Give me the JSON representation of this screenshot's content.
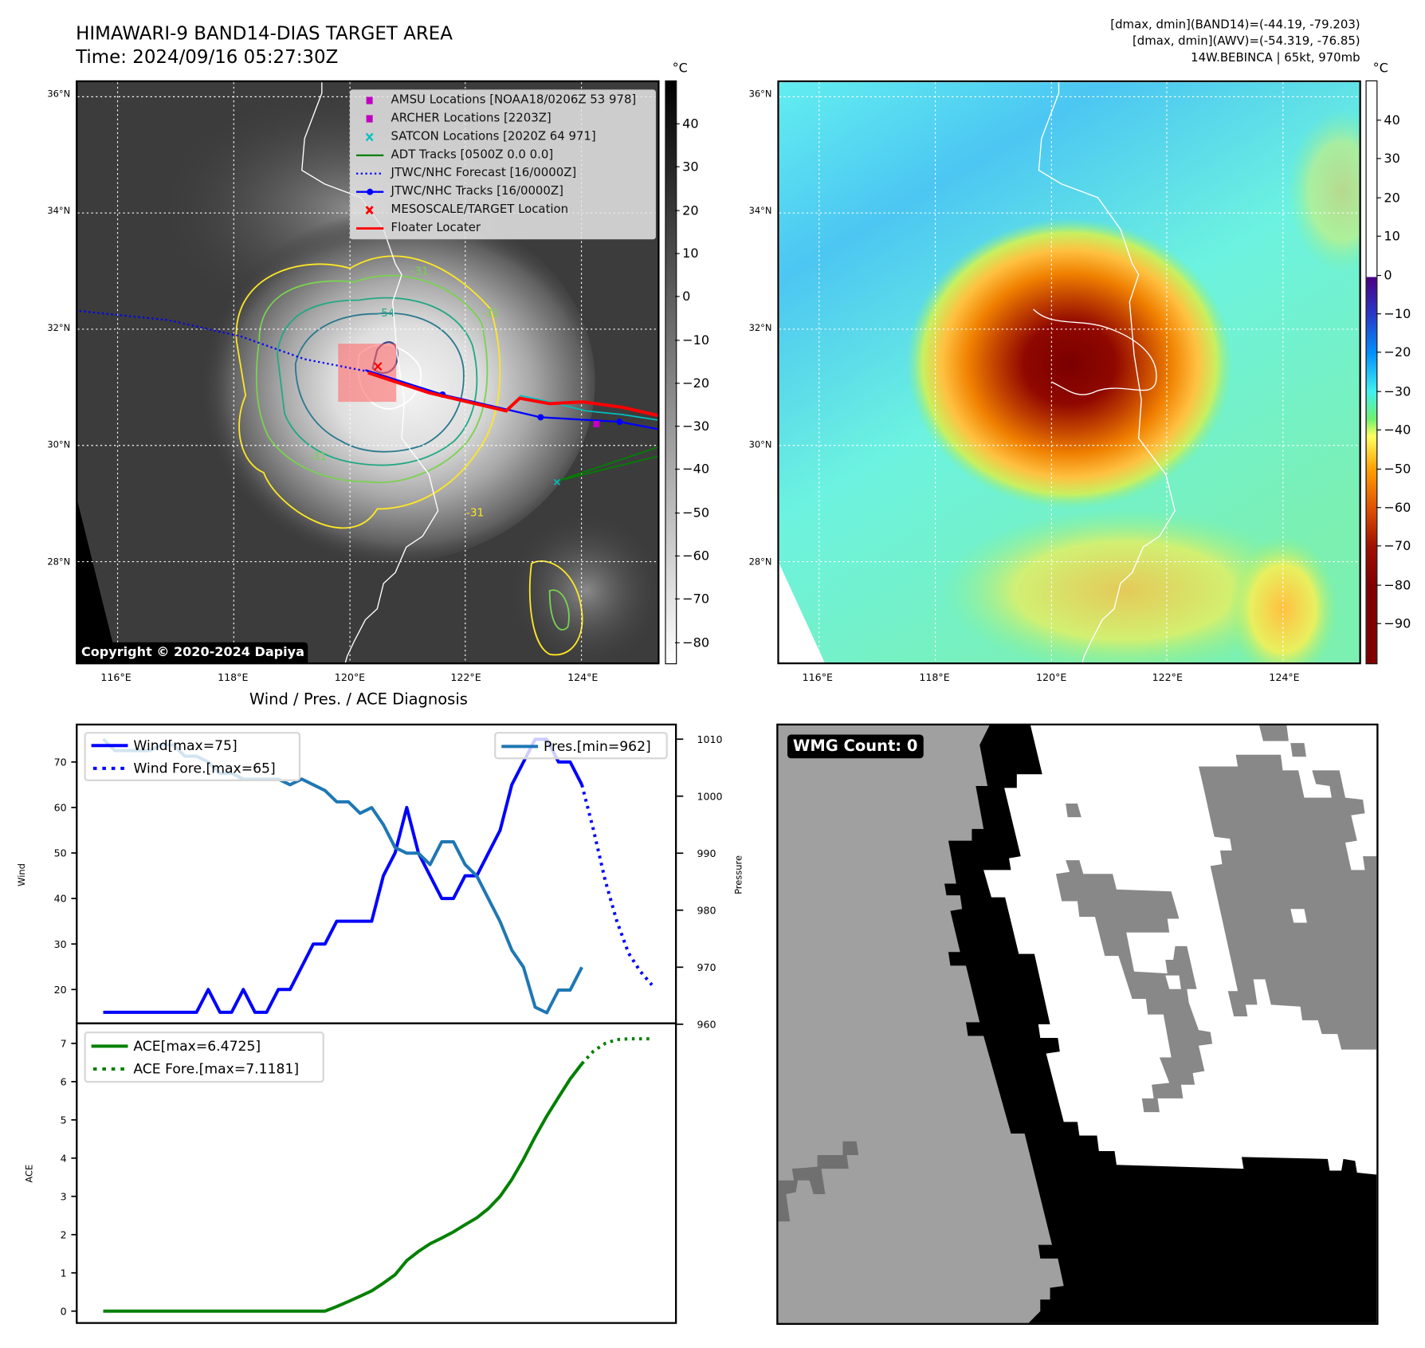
{
  "header": {
    "title": "HIMAWARI-9 BAND14-DIAS TARGET AREA",
    "time": "Time: 2024/09/16 05:27:30Z",
    "stats": [
      "[dmax, dmin](BAND14)=(-44.19, -79.203)",
      "[dmax, dmin](AWV)=(-54.319, -76.85)",
      "14W.BEBINCA | 65kt, 970mb"
    ]
  },
  "maps": {
    "lon_labels": [
      "116°E",
      "118°E",
      "120°E",
      "122°E",
      "124°E"
    ],
    "lat_labels": [
      "36°N",
      "34°N",
      "32°N",
      "30°N",
      "28°N"
    ]
  },
  "left_map": {
    "unit": "°C",
    "colorbar_ticks": [
      "40",
      "30",
      "20",
      "10",
      "0",
      "−10",
      "−20",
      "−30",
      "−40",
      "−50",
      "−60",
      "−70",
      "−80"
    ],
    "contour_labels": [
      "-31",
      "-54",
      "-31",
      "-31",
      "-31"
    ],
    "legend": [
      {
        "label": "AMSU Locations [NOAA18/0206Z 53 978]",
        "marker": "square",
        "color": "#c000c0"
      },
      {
        "label": "ARCHER Locations [2203Z]",
        "marker": "square",
        "color": "#c000c0"
      },
      {
        "label": "SATCON Locations [2020Z 64 971]",
        "marker": "x",
        "color": "#00c0c0"
      },
      {
        "label": "ADT Tracks [0500Z 0.0 0.0]",
        "marker": "line",
        "color": "#008000"
      },
      {
        "label": "JTWC/NHC Forecast [16/0000Z]",
        "marker": "dotted",
        "color": "#0000ff"
      },
      {
        "label": "JTWC/NHC Tracks [16/0000Z]",
        "marker": "line-dot",
        "color": "#0000ff"
      },
      {
        "label": "MESOSCALE/TARGET Location",
        "marker": "x",
        "color": "#ff0000"
      },
      {
        "label": "Floater Locater",
        "marker": "line",
        "color": "#ff0000"
      }
    ],
    "copyright": "Copyright © 2020-2024 Dapiya"
  },
  "right_map": {
    "unit": "°C",
    "colorbar_ticks": [
      "40",
      "30",
      "20",
      "10",
      "0",
      "−10",
      "−20",
      "−30",
      "−40",
      "−50",
      "−60",
      "−70",
      "−80",
      "−90"
    ]
  },
  "diagnosis_title": "Wind / Pres. / ACE Diagnosis",
  "wmg": {
    "label": "WMG Count: 0"
  },
  "colors": {
    "wind": "#0000ff",
    "pressure": "#1f77b4",
    "ace": "#008000"
  },
  "chart_data": [
    {
      "type": "line",
      "title": "Wind / Pres. / ACE Diagnosis",
      "ylabel": "Wind",
      "ylabel_right": "Pressure",
      "ylim": [
        12,
        78
      ],
      "ylim_right": [
        960,
        1012
      ],
      "yticks": [
        20,
        30,
        40,
        50,
        60,
        70
      ],
      "yticks_right": [
        960,
        970,
        980,
        990,
        1000,
        1010
      ],
      "x": [
        0,
        1,
        2,
        3,
        4,
        5,
        6,
        7,
        8,
        9,
        10,
        11,
        12,
        13,
        14,
        15,
        16,
        17,
        18,
        19,
        20,
        21,
        22,
        23,
        24,
        25,
        26,
        27,
        28,
        29,
        30,
        31,
        32,
        33,
        34,
        35,
        36,
        37,
        38,
        39,
        40,
        41
      ],
      "series": [
        {
          "name": "Wind[max=75]",
          "axis": "left",
          "style": "solid",
          "values": [
            15,
            15,
            15,
            15,
            15,
            15,
            15,
            15,
            15,
            20,
            15,
            15,
            20,
            15,
            15,
            20,
            20,
            25,
            30,
            30,
            35,
            35,
            35,
            35,
            45,
            50,
            60,
            50,
            45,
            40,
            40,
            45,
            45,
            50,
            55,
            65,
            70,
            75,
            75,
            70,
            70,
            65
          ]
        },
        {
          "name": "Wind Fore.[max=65]",
          "axis": "left",
          "style": "dotted",
          "x": [
            41,
            42,
            43,
            44,
            45,
            46,
            47
          ],
          "values": [
            65,
            55,
            44,
            35,
            28,
            24,
            21
          ]
        },
        {
          "name": "Pres.[min=962]",
          "axis": "right",
          "style": "solid",
          "values": [
            1010,
            1008,
            1008,
            1008,
            1008,
            1009,
            1009,
            1007,
            1007,
            1006,
            1004,
            1004,
            1003,
            1003,
            1003,
            1003,
            1002,
            1003,
            1002,
            1001,
            999,
            999,
            997,
            998,
            995,
            991,
            990,
            990,
            988,
            992,
            992,
            988,
            986,
            982,
            978,
            973,
            970,
            963,
            962,
            966,
            966,
            970
          ]
        }
      ]
    },
    {
      "type": "line",
      "ylabel": "ACE",
      "ylim": [
        -0.35,
        7.3
      ],
      "yticks": [
        0,
        1,
        2,
        3,
        4,
        5,
        6,
        7
      ],
      "x": [
        0,
        1,
        2,
        3,
        4,
        5,
        6,
        7,
        8,
        9,
        10,
        11,
        12,
        13,
        14,
        15,
        16,
        17,
        18,
        19,
        20,
        21,
        22,
        23,
        24,
        25,
        26,
        27,
        28,
        29,
        30,
        31,
        32,
        33,
        34,
        35,
        36,
        37,
        38,
        39,
        40,
        41
      ],
      "series": [
        {
          "name": "ACE[max=6.4725]",
          "style": "solid",
          "values": [
            0,
            0,
            0,
            0,
            0,
            0,
            0,
            0,
            0,
            0,
            0,
            0,
            0,
            0,
            0,
            0,
            0,
            0,
            0,
            0,
            0.12,
            0.25,
            0.39,
            0.53,
            0.73,
            0.95,
            1.32,
            1.56,
            1.76,
            1.91,
            2.07,
            2.26,
            2.44,
            2.68,
            3.0,
            3.44,
            3.97,
            4.56,
            5.1,
            5.59,
            6.07,
            6.47
          ]
        },
        {
          "name": "ACE Fore.[max=7.1181]",
          "style": "dotted",
          "x": [
            41,
            42,
            43,
            44,
            45,
            46,
            47
          ],
          "values": [
            6.47,
            6.8,
            7.0,
            7.1,
            7.12,
            7.12,
            7.12
          ]
        }
      ]
    }
  ]
}
